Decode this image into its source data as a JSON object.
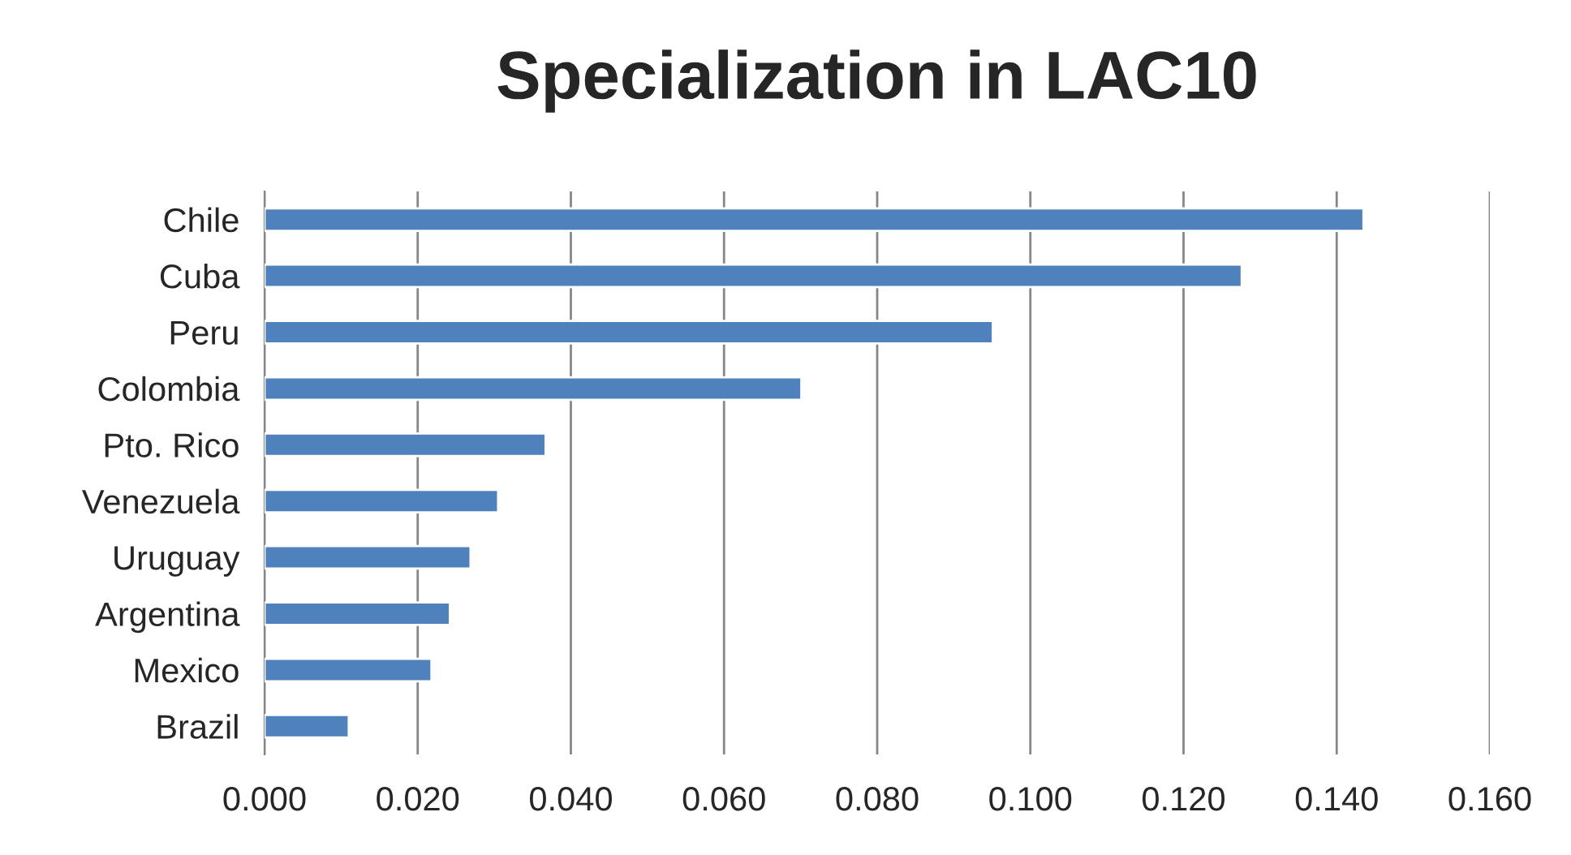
{
  "chart_data": {
    "type": "bar",
    "orientation": "horizontal",
    "title": "Specialization in LAC10",
    "categories": [
      "Chile",
      "Cuba",
      "Peru",
      "Colombia",
      "Pto. Rico",
      "Venezuela",
      "Uruguay",
      "Argentina",
      "Mexico",
      "Brazil"
    ],
    "values": [
      0.1435,
      0.1276,
      0.0951,
      0.0701,
      0.0367,
      0.0305,
      0.0269,
      0.0242,
      0.0218,
      0.011
    ],
    "color": "#4f81bd",
    "xlim": [
      0,
      0.16
    ],
    "xticks": [
      {
        "value": 0,
        "label": "0.000"
      },
      {
        "value": 0.02,
        "label": "0.020"
      },
      {
        "value": 0.04,
        "label": "0.040"
      },
      {
        "value": 0.06,
        "label": "0.060"
      },
      {
        "value": 0.08,
        "label": "0.080"
      },
      {
        "value": 0.1,
        "label": "0.100"
      },
      {
        "value": 0.12,
        "label": "0.120"
      },
      {
        "value": 0.14,
        "label": "0.140"
      },
      {
        "value": 0.16,
        "label": "0.160"
      }
    ],
    "grid": "x",
    "legend": false
  }
}
